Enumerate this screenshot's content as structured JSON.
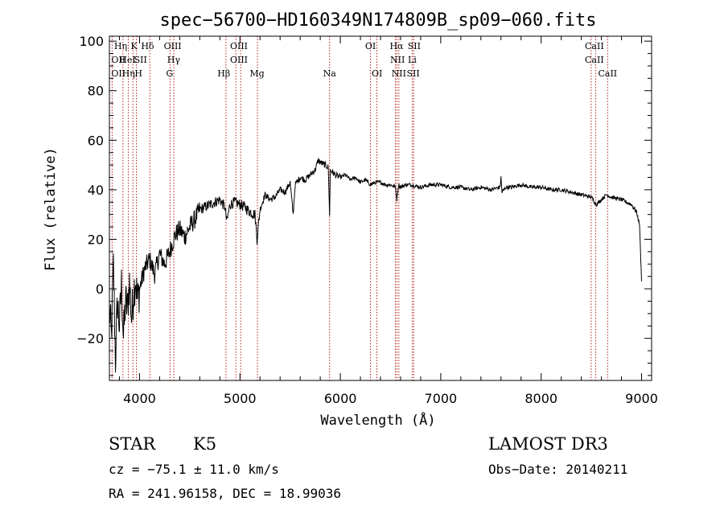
{
  "chart_data": {
    "type": "line",
    "title": "spec−56700−HD160349N174809B_sp09−060.fits",
    "xlabel": "Wavelength (Å)",
    "ylabel": "Flux (relative)",
    "xlim": [
      3700,
      9100
    ],
    "ylim": [
      -37,
      102
    ],
    "xticks": [
      4000,
      5000,
      6000,
      7000,
      8000,
      9000
    ],
    "yticks": [
      -20,
      0,
      20,
      40,
      60,
      80,
      100
    ],
    "series": [
      {
        "name": "spectrum",
        "x": [
          3700,
          3720,
          3740,
          3760,
          3780,
          3800,
          3820,
          3840,
          3860,
          3880,
          3900,
          3920,
          3940,
          3960,
          3980,
          4000,
          4050,
          4100,
          4150,
          4200,
          4250,
          4300,
          4340,
          4360,
          4400,
          4450,
          4500,
          4550,
          4600,
          4650,
          4700,
          4750,
          4800,
          4850,
          4870,
          4900,
          4950,
          5000,
          5050,
          5100,
          5150,
          5170,
          5185,
          5200,
          5250,
          5300,
          5350,
          5400,
          5450,
          5500,
          5530,
          5550,
          5600,
          5650,
          5700,
          5750,
          5780,
          5800,
          5850,
          5880,
          5893,
          5900,
          5950,
          6000,
          6050,
          6100,
          6150,
          6200,
          6250,
          6300,
          6350,
          6400,
          6450,
          6500,
          6550,
          6563,
          6580,
          6600,
          6650,
          6700,
          6800,
          6900,
          7000,
          7100,
          7200,
          7300,
          7400,
          7500,
          7590,
          7600,
          7610,
          7650,
          7700,
          7800,
          7900,
          8000,
          8100,
          8200,
          8300,
          8400,
          8500,
          8550,
          8600,
          8650,
          8700,
          8800,
          8900,
          8950,
          8980,
          9000
        ],
        "y": [
          -8,
          -20,
          10,
          -29,
          -5,
          -15,
          2,
          -20,
          -5,
          -8,
          3,
          -12,
          -2,
          5,
          -5,
          0,
          8,
          12,
          6,
          14,
          10,
          15,
          20,
          22,
          24,
          21,
          25,
          28,
          32,
          33,
          34,
          35,
          36,
          33,
          27,
          34,
          35,
          34,
          33,
          31,
          30,
          20,
          26,
          32,
          38,
          36,
          37,
          40,
          39,
          43,
          30,
          42,
          45,
          44,
          46,
          48,
          52,
          51,
          50,
          49,
          30,
          48,
          46,
          45,
          46,
          44,
          45,
          43,
          44,
          42,
          43,
          43,
          42,
          42,
          41,
          36,
          42,
          41,
          42,
          42,
          41,
          42,
          42,
          41,
          41,
          40,
          41,
          40,
          41,
          45,
          39,
          41,
          41,
          42,
          41,
          41,
          40,
          40,
          39,
          38,
          37,
          34,
          36,
          38,
          37,
          36,
          34,
          31,
          26,
          3
        ]
      }
    ],
    "lines": [
      {
        "name": "Hη",
        "wl": 3835
      },
      {
        "name": "O II",
        "wl": 3727
      },
      {
        "name": "Hζ",
        "wl": 3889
      },
      {
        "name": "K",
        "wl": 3934
      },
      {
        "name": "H",
        "wl": 3969
      },
      {
        "name": "Hδ",
        "wl": 4102
      },
      {
        "name": "G",
        "wl": 4304
      },
      {
        "name": "Hγ",
        "wl": 4341
      },
      {
        "name": "Hβ",
        "wl": 4861
      },
      {
        "name": "O III",
        "wl": 4959
      },
      {
        "name": "O III",
        "wl": 5007
      },
      {
        "name": "Mg",
        "wl": 5175
      },
      {
        "name": "Na",
        "wl": 5893
      },
      {
        "name": "O I",
        "wl": 6300
      },
      {
        "name": "O I",
        "wl": 6364
      },
      {
        "name": "N II",
        "wl": 6548
      },
      {
        "name": "Hα",
        "wl": 6563
      },
      {
        "name": "N II",
        "wl": 6583
      },
      {
        "name": "S II",
        "wl": 6716
      },
      {
        "name": "S II",
        "wl": 6731
      },
      {
        "name": "Ca II",
        "wl": 8498
      },
      {
        "name": "Ca II",
        "wl": 8542
      },
      {
        "name": "Ca II",
        "wl": 8662
      }
    ],
    "labels": [
      {
        "text": "Hη",
        "wl": 3812,
        "row": 1
      },
      {
        "text": "K",
        "wl": 3945,
        "row": 1
      },
      {
        "text": "Hδ",
        "wl": 4080,
        "row": 1
      },
      {
        "text": "OIII",
        "wl": 4330,
        "row": 1
      },
      {
        "text": "OIII",
        "wl": 4990,
        "row": 1
      },
      {
        "text": "OI",
        "wl": 6300,
        "row": 1
      },
      {
        "text": "Hα",
        "wl": 6560,
        "row": 1
      },
      {
        "text": "SII",
        "wl": 6735,
        "row": 1
      },
      {
        "text": "CaII",
        "wl": 8530,
        "row": 1
      },
      {
        "text": "OII",
        "wl": 3790,
        "row": 2
      },
      {
        "text": "HeI",
        "wl": 3880,
        "row": 2
      },
      {
        "text": "SII",
        "wl": 4010,
        "row": 2
      },
      {
        "text": "Hγ",
        "wl": 4340,
        "row": 2
      },
      {
        "text": "OIII",
        "wl": 4990,
        "row": 2
      },
      {
        "text": "NII",
        "wl": 6570,
        "row": 2
      },
      {
        "text": "Li",
        "wl": 6716,
        "row": 2
      },
      {
        "text": "CaII",
        "wl": 8530,
        "row": 2
      },
      {
        "text": "OII",
        "wl": 3790,
        "row": 3
      },
      {
        "text": "Hη",
        "wl": 3890,
        "row": 3
      },
      {
        "text": "H",
        "wl": 3990,
        "row": 3
      },
      {
        "text": "G",
        "wl": 4300,
        "row": 3
      },
      {
        "text": "Hβ",
        "wl": 4840,
        "row": 3
      },
      {
        "text": "Mg",
        "wl": 5170,
        "row": 3
      },
      {
        "text": "Na",
        "wl": 5893,
        "row": 3
      },
      {
        "text": "OI",
        "wl": 6365,
        "row": 3
      },
      {
        "text": "NII",
        "wl": 6583,
        "row": 3
      },
      {
        "text": "SII",
        "wl": 6725,
        "row": 3
      },
      {
        "text": "CaII",
        "wl": 8662,
        "row": 3
      }
    ]
  },
  "info": {
    "object_class": "STAR",
    "subclass": "K5",
    "survey": "LAMOST DR3",
    "cz": "cz = −75.1 ± 11.0 km/s",
    "obs_date": "Obs−Date: 20140211",
    "coords": "RA = 241.96158, DEC =  18.99036"
  }
}
